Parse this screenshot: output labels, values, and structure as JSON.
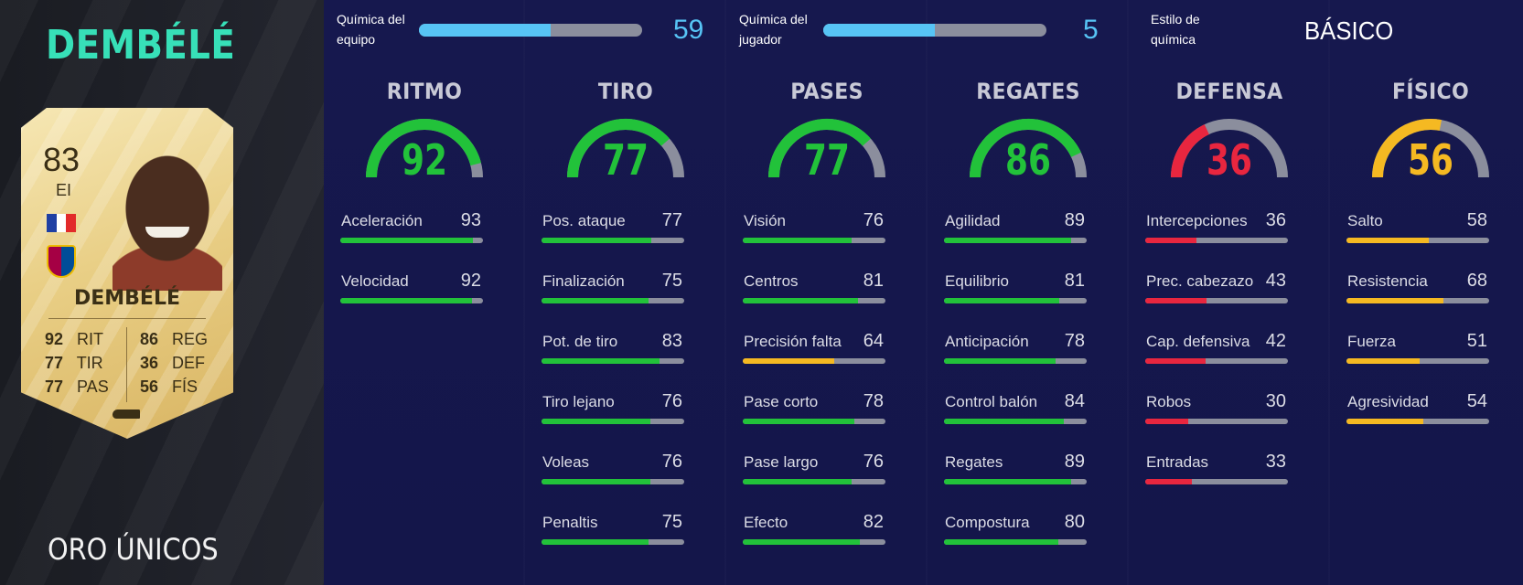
{
  "player": {
    "name": "DEMBÉLÉ",
    "card_type": "ORO ÚNICOS",
    "card": {
      "rating": "83",
      "position": "EI",
      "name": "DEMBÉLÉ",
      "stats_left": [
        {
          "value": "92",
          "label": "RIT"
        },
        {
          "value": "77",
          "label": "TIR"
        },
        {
          "value": "77",
          "label": "PAS"
        }
      ],
      "stats_right": [
        {
          "value": "86",
          "label": "REG"
        },
        {
          "value": "36",
          "label": "DEF"
        },
        {
          "value": "56",
          "label": "FÍS"
        }
      ]
    }
  },
  "chemistry": {
    "team": {
      "label_line1": "Química del",
      "label_line2": "equipo",
      "value": "59",
      "fill_fraction": 0.59
    },
    "player": {
      "label_line1": "Química del",
      "label_line2": "jugador",
      "value": "5",
      "fill_fraction": 0.5
    },
    "style": {
      "label_line1": "Estilo de",
      "label_line2": "química",
      "value": "BÁSICO"
    }
  },
  "colors": {
    "green": "#22c23a",
    "yellow": "#f5b922",
    "red": "#e8263f",
    "track": "#8b8e9d",
    "chem_blue": "#57c4f5"
  },
  "categories": [
    {
      "title": "RITMO",
      "value": "92",
      "color": "#22c23a",
      "subs": [
        {
          "name": "Aceleración",
          "value": "93",
          "color": "#22c23a"
        },
        {
          "name": "Velocidad",
          "value": "92",
          "color": "#22c23a"
        }
      ]
    },
    {
      "title": "TIRO",
      "value": "77",
      "color": "#22c23a",
      "subs": [
        {
          "name": "Pos. ataque",
          "value": "77",
          "color": "#22c23a"
        },
        {
          "name": "Finalización",
          "value": "75",
          "color": "#22c23a"
        },
        {
          "name": "Pot. de tiro",
          "value": "83",
          "color": "#22c23a"
        },
        {
          "name": "Tiro lejano",
          "value": "76",
          "color": "#22c23a"
        },
        {
          "name": "Voleas",
          "value": "76",
          "color": "#22c23a"
        },
        {
          "name": "Penaltis",
          "value": "75",
          "color": "#22c23a"
        }
      ]
    },
    {
      "title": "PASES",
      "value": "77",
      "color": "#22c23a",
      "subs": [
        {
          "name": "Visión",
          "value": "76",
          "color": "#22c23a"
        },
        {
          "name": "Centros",
          "value": "81",
          "color": "#22c23a"
        },
        {
          "name": "Precisión falta",
          "value": "64",
          "color": "#f5b922"
        },
        {
          "name": "Pase corto",
          "value": "78",
          "color": "#22c23a"
        },
        {
          "name": "Pase largo",
          "value": "76",
          "color": "#22c23a"
        },
        {
          "name": "Efecto",
          "value": "82",
          "color": "#22c23a"
        }
      ]
    },
    {
      "title": "REGATES",
      "value": "86",
      "color": "#22c23a",
      "subs": [
        {
          "name": "Agilidad",
          "value": "89",
          "color": "#22c23a"
        },
        {
          "name": "Equilibrio",
          "value": "81",
          "color": "#22c23a"
        },
        {
          "name": "Anticipación",
          "value": "78",
          "color": "#22c23a"
        },
        {
          "name": "Control balón",
          "value": "84",
          "color": "#22c23a"
        },
        {
          "name": "Regates",
          "value": "89",
          "color": "#22c23a"
        },
        {
          "name": "Compostura",
          "value": "80",
          "color": "#22c23a"
        }
      ]
    },
    {
      "title": "DEFENSA",
      "value": "36",
      "color": "#e8263f",
      "subs": [
        {
          "name": "Intercepciones",
          "value": "36",
          "color": "#e8263f"
        },
        {
          "name": "Prec. cabezazo",
          "value": "43",
          "color": "#e8263f"
        },
        {
          "name": "Cap. defensiva",
          "value": "42",
          "color": "#e8263f"
        },
        {
          "name": "Robos",
          "value": "30",
          "color": "#e8263f"
        },
        {
          "name": "Entradas",
          "value": "33",
          "color": "#e8263f"
        }
      ]
    },
    {
      "title": "FÍSICO",
      "value": "56",
      "color": "#f5b922",
      "subs": [
        {
          "name": "Salto",
          "value": "58",
          "color": "#f5b922"
        },
        {
          "name": "Resistencia",
          "value": "68",
          "color": "#f5b922"
        },
        {
          "name": "Fuerza",
          "value": "51",
          "color": "#f5b922"
        },
        {
          "name": "Agresividad",
          "value": "54",
          "color": "#f5b922"
        }
      ]
    }
  ]
}
